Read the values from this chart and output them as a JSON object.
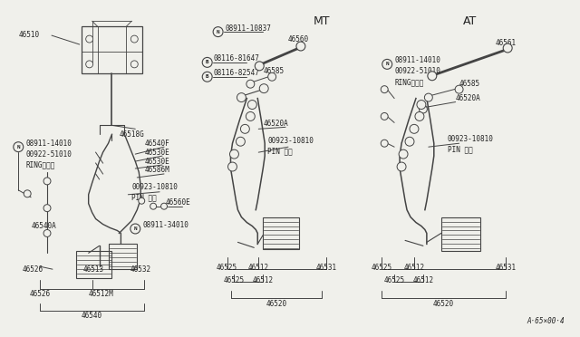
{
  "bg_color": "#f0f0eb",
  "line_color": "#444444",
  "text_color": "#222222",
  "mt_label": "MT",
  "at_label": "AT",
  "watermark": "A·65×00·4"
}
